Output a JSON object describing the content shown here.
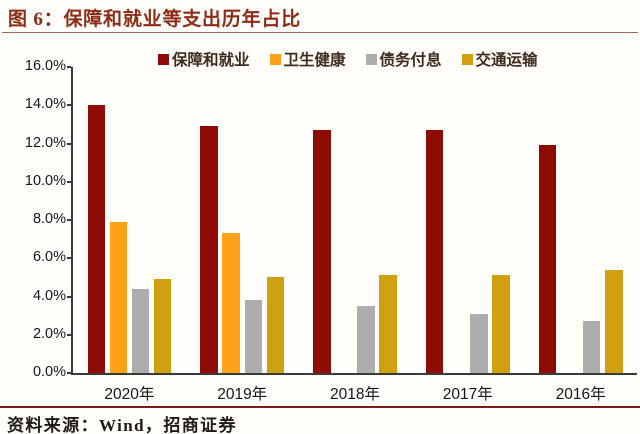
{
  "title": "图 6：保障和就业等支出历年占比",
  "source_note": "资料来源：Wind，招商证券",
  "colors": {
    "title": "#8d2b15",
    "title_rule": "#a5655e",
    "footer_rule": "#7c1f10",
    "axis": "#3a3a3a"
  },
  "chart_data": {
    "type": "bar",
    "title": "保障和就业等支出历年占比",
    "categories": [
      "2020年",
      "2019年",
      "2018年",
      "2017年",
      "2016年"
    ],
    "series": [
      {
        "name": "保障和就业",
        "color": "#8e0b04",
        "values": [
          14.0,
          12.9,
          12.7,
          12.7,
          11.9
        ]
      },
      {
        "name": "卫生健康",
        "color": "#ffa217",
        "values": [
          7.9,
          7.3,
          null,
          null,
          null
        ]
      },
      {
        "name": "债务付息",
        "color": "#adadad",
        "values": [
          4.4,
          3.8,
          3.5,
          3.1,
          2.7
        ]
      },
      {
        "name": "交通运输",
        "color": "#d0a011",
        "values": [
          4.9,
          5.0,
          5.1,
          5.1,
          5.4
        ]
      }
    ],
    "ylim": [
      0,
      16
    ],
    "ytick_step": 2,
    "ytick_format": "percent1",
    "grid": false,
    "legend_position": "top"
  }
}
